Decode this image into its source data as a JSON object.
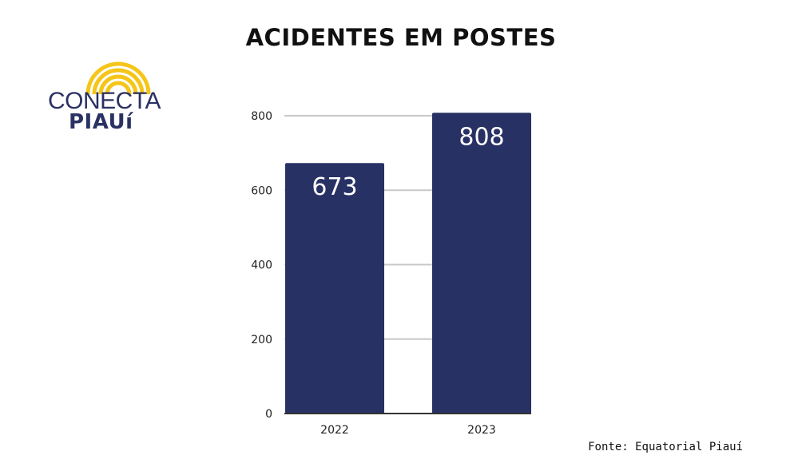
{
  "title": "ACIDENTES EM POSTES",
  "logo": {
    "line1": "CONECTA",
    "line2": "PIAUí",
    "icon": "rainbow-arcs-icon",
    "colors": {
      "arc": "#f5c518",
      "text": "#2a3163"
    }
  },
  "source": "Fonte: Equatorial Piauí",
  "colors": {
    "bar": "#283163",
    "grid": "#c8c8c8",
    "axis": "#333333",
    "label": "#ffffff"
  },
  "chart_data": {
    "type": "bar",
    "title": "ACIDENTES EM POSTES",
    "categories": [
      "2022",
      "2023"
    ],
    "values": [
      673,
      808
    ],
    "data_labels": [
      "673",
      "808"
    ],
    "yticks": [
      0,
      200,
      400,
      600,
      800
    ],
    "ylim": [
      0,
      808
    ],
    "grid": true,
    "legend": "none"
  }
}
